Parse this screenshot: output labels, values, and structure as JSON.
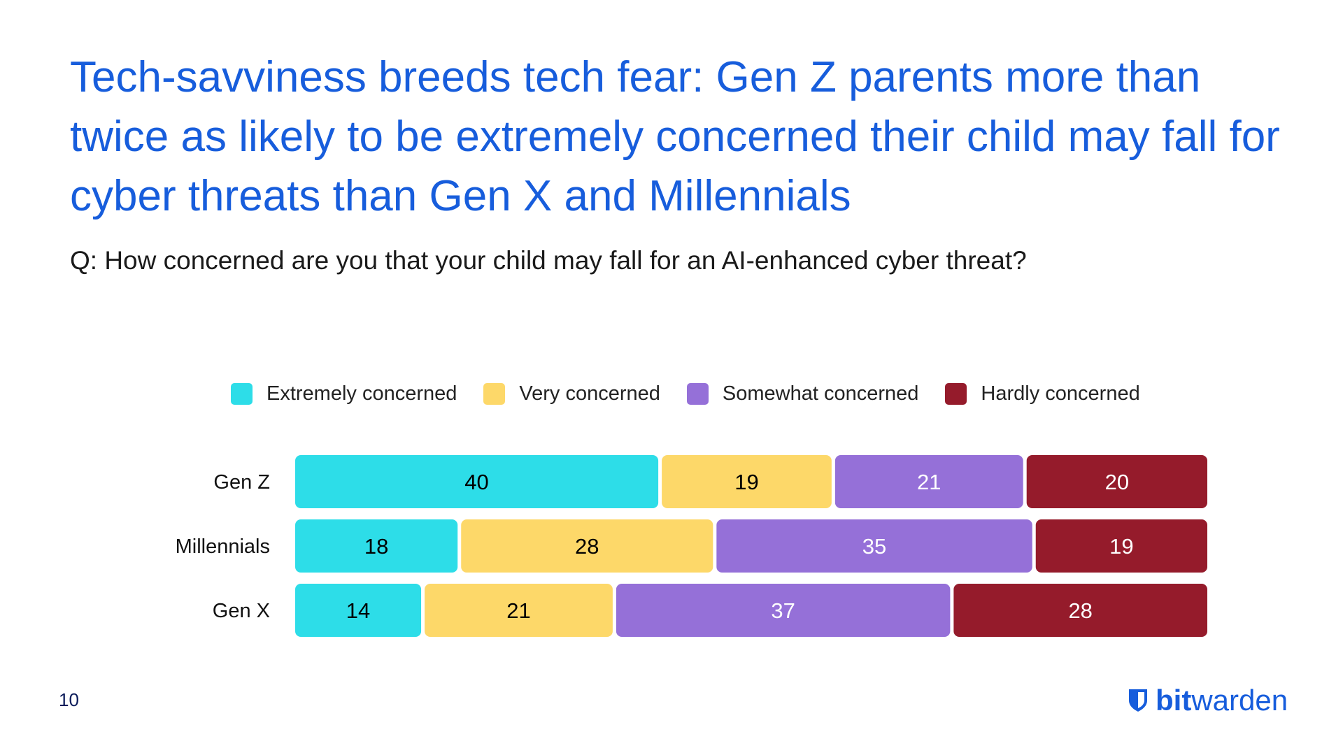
{
  "title": "Tech-savviness breeds tech fear: Gen Z parents more than twice as likely to be extremely concerned their child may fall for cyber threats than Gen X and Millennials",
  "subtitle": "Q: How concerned are you that your child may fall for an AI-enhanced cyber threat?",
  "page_number": "10",
  "logo": {
    "bold": "bit",
    "light": "warden",
    "icon": "shield-icon"
  },
  "chart_data": {
    "type": "bar",
    "orientation": "horizontal",
    "stacked": true,
    "categories": [
      "Gen Z",
      "Millennials",
      "Gen X"
    ],
    "series": [
      {
        "name": "Extremely concerned",
        "color": "#2DDDE8",
        "label_color": "#000000",
        "values": [
          40,
          18,
          14
        ]
      },
      {
        "name": "Very concerned",
        "color": "#FDD869",
        "label_color": "#000000",
        "values": [
          19,
          28,
          21
        ]
      },
      {
        "name": "Somewhat concerned",
        "color": "#9570D8",
        "label_color": "#FFFFFF",
        "values": [
          21,
          35,
          37
        ]
      },
      {
        "name": "Hardly concerned",
        "color": "#951B2B",
        "label_color": "#FFFFFF",
        "values": [
          20,
          19,
          28
        ]
      }
    ],
    "legend_placement": "top",
    "grid": false,
    "xlim": [
      0,
      100
    ]
  }
}
